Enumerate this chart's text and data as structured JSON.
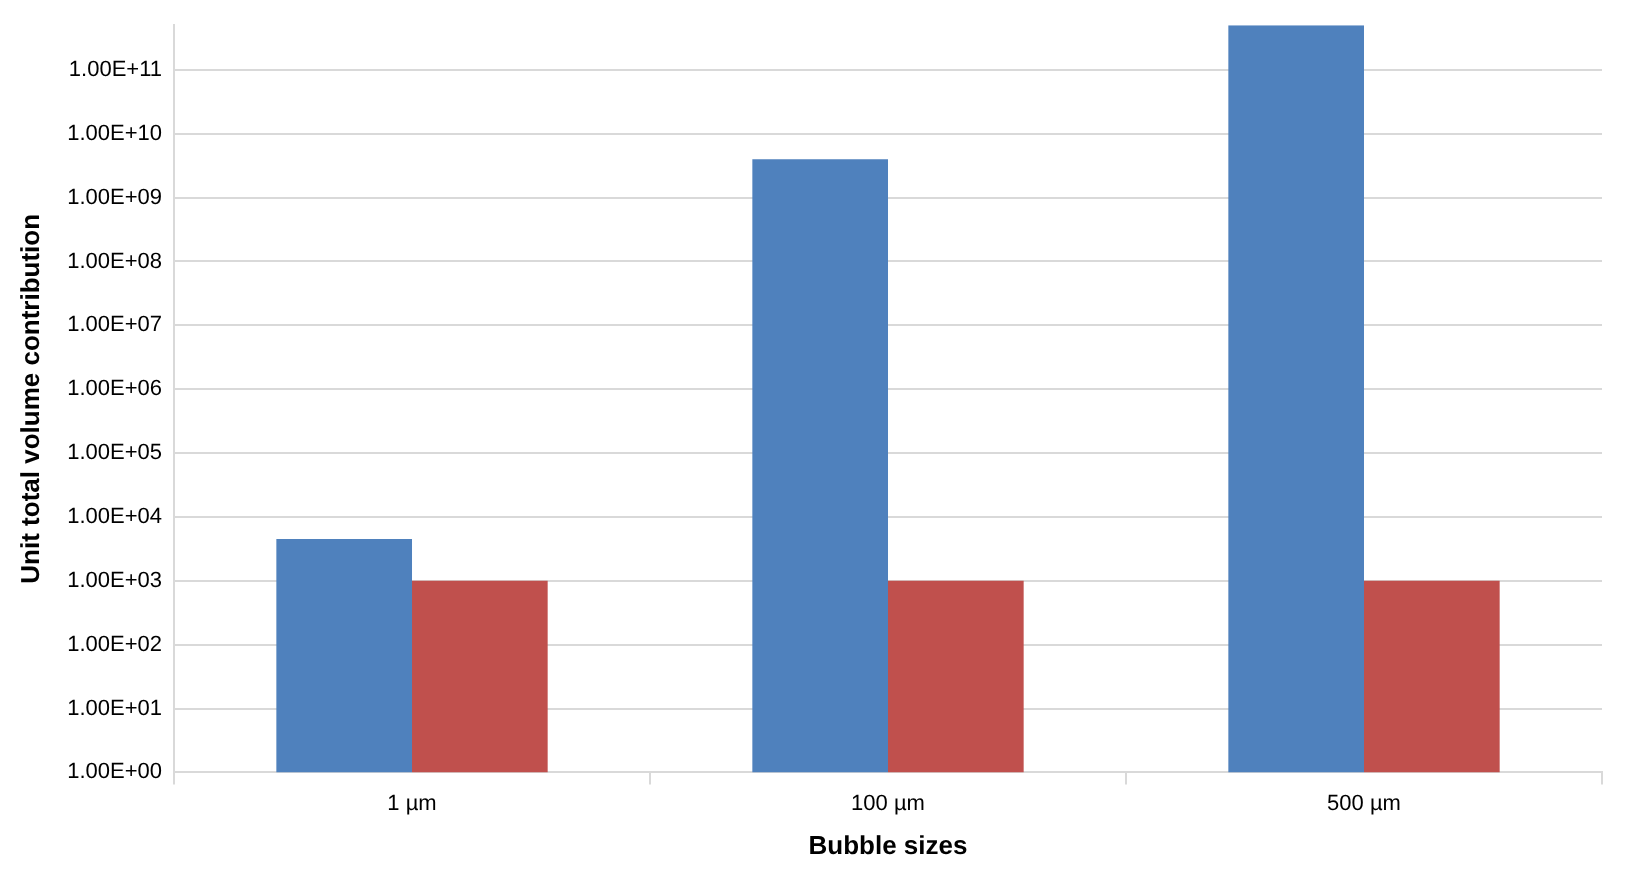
{
  "chart_data": {
    "type": "bar",
    "xlabel": "Bubble sizes",
    "ylabel": "Unit total volume contribution",
    "categories": [
      "1 µm",
      "100 µm",
      "500 µm"
    ],
    "series": [
      {
        "color": "#4f81bd",
        "values": [
          4500,
          4000000000,
          500000000000
        ]
      },
      {
        "color": "#c0504d",
        "values": [
          1000,
          1000,
          1000
        ]
      }
    ],
    "log": "y",
    "ylim": [
      1,
      500000000000
    ],
    "yticks": [
      {
        "value": 1,
        "label": "1.00E+00"
      },
      {
        "value": 10,
        "label": "1.00E+01"
      },
      {
        "value": 100,
        "label": "1.00E+02"
      },
      {
        "value": 1000,
        "label": "1.00E+03"
      },
      {
        "value": 10000,
        "label": "1.00E+04"
      },
      {
        "value": 100000,
        "label": "1.00E+05"
      },
      {
        "value": 1000000,
        "label": "1.00E+06"
      },
      {
        "value": 10000000,
        "label": "1.00E+07"
      },
      {
        "value": 100000000,
        "label": "1.00E+08"
      },
      {
        "value": 1000000000,
        "label": "1.00E+09"
      },
      {
        "value": 10000000000,
        "label": "1.00E+10"
      },
      {
        "value": 100000000000,
        "label": "1.00E+11"
      }
    ],
    "grid": "y",
    "legend": false
  }
}
